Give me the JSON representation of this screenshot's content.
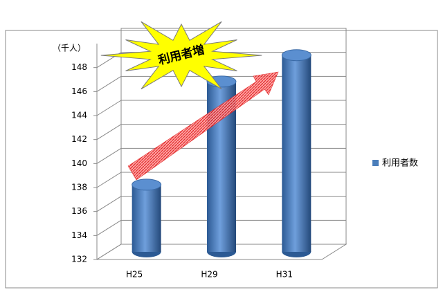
{
  "chart_data": {
    "type": "bar3d",
    "y_axis_label": "（千人）",
    "annotation": "利用者増",
    "categories": [
      "H25",
      "H29",
      "H31"
    ],
    "series": [
      {
        "name": "利用者数",
        "color": "#4a7ebb",
        "values": [
          137.6,
          146.2,
          148.4
        ]
      }
    ],
    "ylim": [
      132,
      150
    ],
    "yticks": [
      132,
      134,
      136,
      138,
      140,
      142,
      144,
      146,
      148
    ],
    "grid": true,
    "legend": "right"
  }
}
